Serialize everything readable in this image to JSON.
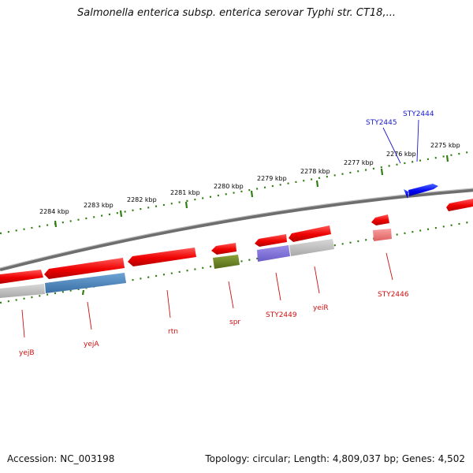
{
  "title": "Salmonella enterica subsp. enterica serovar Typhi str. CT18,...",
  "footer": {
    "accession": "Accession: NC_003198",
    "stats": "Topology: circular; Length: 4,809,037 bp; Genes: 4,502"
  },
  "colors": {
    "backbone": "#888888",
    "tick": "#2e7d0e",
    "forward_gene": "#ee1111",
    "reverse_gene": "#ee1111",
    "highlight_gene": "#1a1aee",
    "label_red": "#cc1111",
    "label_blue": "#1a1acc"
  },
  "ticks": [
    {
      "label": "2284 kbp"
    },
    {
      "label": "2283 kbp"
    },
    {
      "label": "2282 kbp"
    },
    {
      "label": "2281 kbp"
    },
    {
      "label": "2280 kbp"
    },
    {
      "label": "2279 kbp"
    },
    {
      "label": "2278 kbp"
    },
    {
      "label": "2277 kbp"
    },
    {
      "label": "2276 kbp"
    },
    {
      "label": "2275 kbp"
    }
  ],
  "gene_labels": {
    "yejB": "yejB",
    "yejA": "yejA",
    "rtn": "rtn",
    "spr": "spr",
    "STY2449": "STY2449",
    "yeiR": "yeiR",
    "STY2446": "STY2446",
    "STY2445": "STY2445",
    "STY2444": "STY2444"
  }
}
